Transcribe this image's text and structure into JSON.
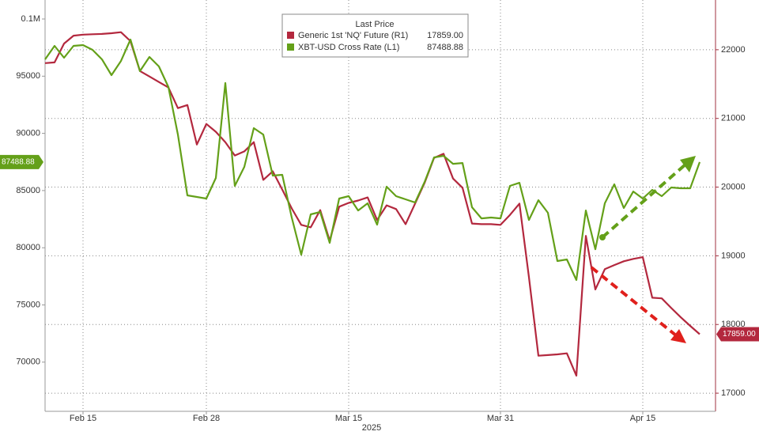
{
  "chart_data": {
    "type": "line",
    "legend_title": "Last Price",
    "x_axis_label": "2025",
    "x": [
      "2025-02-11",
      "2025-02-12",
      "2025-02-13",
      "2025-02-14",
      "2025-02-15",
      "2025-02-16",
      "2025-02-17",
      "2025-02-18",
      "2025-02-19",
      "2025-02-20",
      "2025-02-21",
      "2025-02-22",
      "2025-02-23",
      "2025-02-24",
      "2025-02-25",
      "2025-02-26",
      "2025-02-27",
      "2025-02-28",
      "2025-03-01",
      "2025-03-02",
      "2025-03-03",
      "2025-03-04",
      "2025-03-05",
      "2025-03-06",
      "2025-03-07",
      "2025-03-08",
      "2025-03-09",
      "2025-03-10",
      "2025-03-11",
      "2025-03-12",
      "2025-03-13",
      "2025-03-14",
      "2025-03-15",
      "2025-03-16",
      "2025-03-17",
      "2025-03-18",
      "2025-03-19",
      "2025-03-20",
      "2025-03-21",
      "2025-03-22",
      "2025-03-23",
      "2025-03-24",
      "2025-03-25",
      "2025-03-26",
      "2025-03-27",
      "2025-03-28",
      "2025-03-29",
      "2025-03-30",
      "2025-03-31",
      "2025-04-01",
      "2025-04-02",
      "2025-04-03",
      "2025-04-04",
      "2025-04-05",
      "2025-04-06",
      "2025-04-07",
      "2025-04-08",
      "2025-04-09",
      "2025-04-10",
      "2025-04-11",
      "2025-04-12",
      "2025-04-13",
      "2025-04-14",
      "2025-04-15",
      "2025-04-16",
      "2025-04-17",
      "2025-04-18",
      "2025-04-19",
      "2025-04-20",
      "2025-04-21"
    ],
    "xlim": [
      "2025-02-11",
      "2025-04-22"
    ],
    "xticks": [
      {
        "value": "2025-02-15",
        "label": "Feb 15"
      },
      {
        "value": "2025-02-28",
        "label": "Feb 28"
      },
      {
        "value": "2025-03-15",
        "label": "Mar 15"
      },
      {
        "value": "2025-03-31",
        "label": "Mar 31"
      },
      {
        "value": "2025-04-15",
        "label": "Apr 15"
      }
    ],
    "ylim": [
      65700,
      101660
    ],
    "yticks": [
      70000,
      75000,
      80000,
      85000,
      90000,
      95000,
      {
        "value": 100000,
        "label": "0.1M"
      }
    ],
    "y2lim": [
      16736,
      22724
    ],
    "y2ticks": [
      17000,
      18000,
      19000,
      20000,
      21000,
      22000
    ],
    "grid": "y2",
    "series": [
      {
        "name": "Generic 1st 'NQ' Future (R1)",
        "color": "#b3283e",
        "axis": "y2",
        "last_label": "17859.00",
        "values": [
          21805,
          21815,
          22090,
          22205,
          22220,
          22225,
          22230,
          22240,
          22255,
          22125,
          21690,
          21610,
          21530,
          21450,
          21150,
          21195,
          20620,
          20920,
          20805,
          20655,
          20460,
          20520,
          20655,
          20105,
          20230,
          19965,
          19690,
          19450,
          19415,
          19665,
          19220,
          19715,
          19770,
          19805,
          19850,
          19520,
          19735,
          19680,
          19460,
          19760,
          20060,
          20425,
          20485,
          20125,
          19990,
          19470,
          19460,
          19460,
          19450,
          19595,
          19760,
          18690,
          17545,
          17555,
          17565,
          17580,
          17255,
          19290,
          18510,
          18805,
          18865,
          18920,
          18955,
          18980,
          18390,
          18380,
          18240,
          18105,
          17980,
          17859
        ]
      },
      {
        "name": "XBT-USD Cross Rate (L1)",
        "color": "#64a019",
        "last_label": "87488.88",
        "values": [
          96470,
          97650,
          96610,
          97650,
          97720,
          97300,
          96470,
          95090,
          96330,
          98200,
          95440,
          96680,
          95850,
          94050,
          89900,
          84580,
          84440,
          84300,
          86100,
          94400,
          85410,
          87070,
          90460,
          89900,
          86310,
          86380,
          82640,
          79390,
          82920,
          83130,
          80430,
          84300,
          84510,
          83260,
          83890,
          82020,
          85340,
          84510,
          84230,
          83960,
          85750,
          87900,
          88040,
          87340,
          87410,
          83540,
          82570,
          82640,
          82570,
          85410,
          85680,
          82430,
          84160,
          83060,
          78840,
          78980,
          77180,
          83260,
          79870,
          83890,
          85550,
          83470,
          84920,
          84300,
          85060,
          84510,
          85270,
          85200,
          85200,
          87488.88
        ]
      }
    ]
  }
}
